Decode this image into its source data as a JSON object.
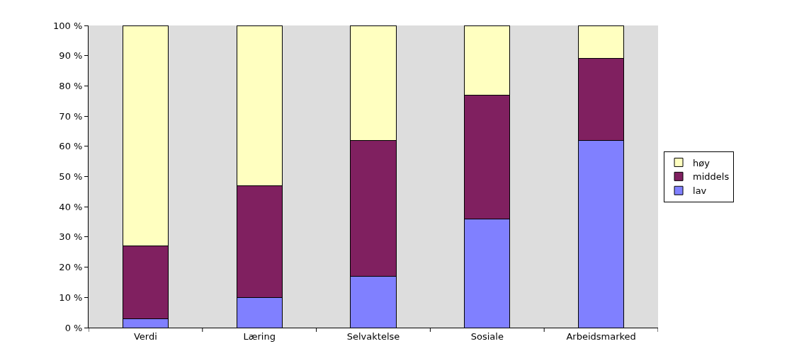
{
  "chart_data": {
    "type": "bar",
    "stacked": true,
    "categories": [
      "Verdi",
      "Læring",
      "Selvaktelse",
      "Sosiale",
      "Arbeidsmarked"
    ],
    "series": [
      {
        "name": "lav",
        "color": "#8080ff",
        "values": [
          3,
          10,
          17,
          36,
          62
        ]
      },
      {
        "name": "middels",
        "color": "#802060",
        "values": [
          24,
          37,
          45,
          41,
          27
        ]
      },
      {
        "name": "høy",
        "color": "#ffffc0",
        "values": [
          73,
          53,
          38,
          23,
          11
        ]
      }
    ],
    "ylim": [
      0,
      100
    ],
    "yticks": [
      {
        "value": 0,
        "label": "0 %"
      },
      {
        "value": 10,
        "label": "10 %"
      },
      {
        "value": 20,
        "label": "20 %"
      },
      {
        "value": 30,
        "label": "30 %"
      },
      {
        "value": 40,
        "label": "40 %"
      },
      {
        "value": 50,
        "label": "50 %"
      },
      {
        "value": 60,
        "label": "60 %"
      },
      {
        "value": 70,
        "label": "70 %"
      },
      {
        "value": 80,
        "label": "80 %"
      },
      {
        "value": 90,
        "label": "90 %"
      },
      {
        "value": 100,
        "label": "100 %"
      }
    ],
    "grid": false,
    "legend": "right"
  }
}
